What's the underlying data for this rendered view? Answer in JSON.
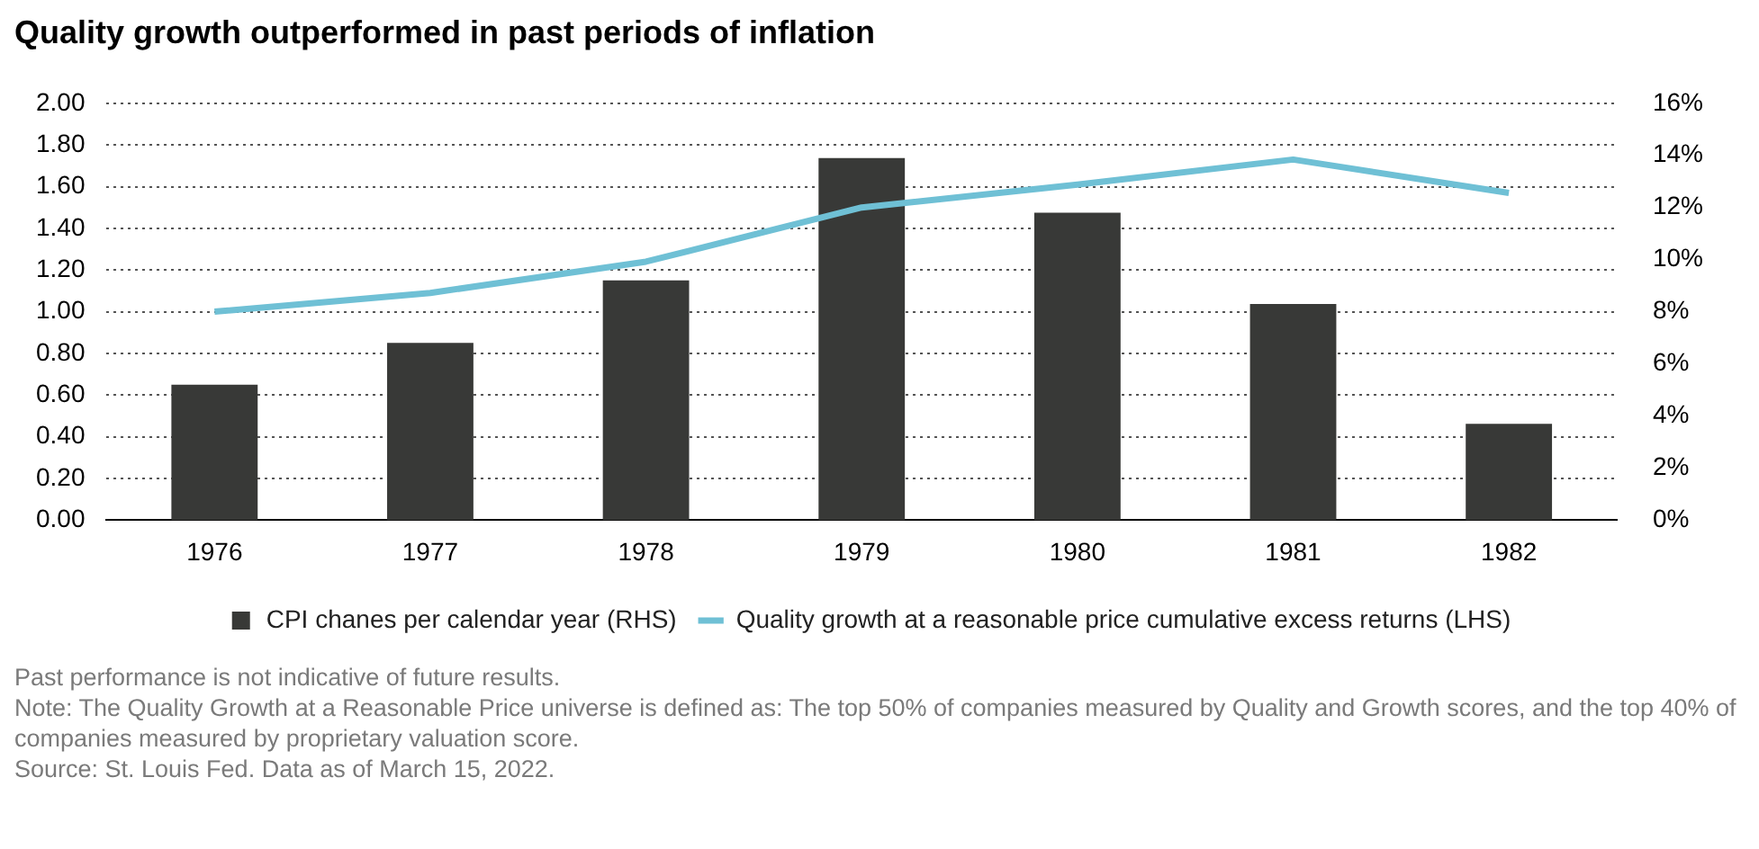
{
  "chart_data": {
    "type": "bar",
    "title": "Quality growth outperformed in past periods of inflation",
    "categories": [
      "1976",
      "1977",
      "1978",
      "1979",
      "1980",
      "1981",
      "1982"
    ],
    "series": [
      {
        "name": "CPI chanes per calendar year (RHS)",
        "axis": "y2",
        "color": "#383937",
        "values": [
          5.2,
          6.8,
          9.2,
          13.9,
          11.8,
          8.3,
          3.7
        ]
      },
      {
        "name": "Quality growth at a reasonable price cumulative excess returns (LHS)",
        "type": "line",
        "color": "#6fc0d5",
        "values": [
          1.0,
          1.09,
          1.24,
          1.5,
          1.61,
          1.73,
          1.57
        ]
      }
    ],
    "ylim": [
      0,
      2
    ],
    "yticks": [
      {
        "value": 0,
        "label": "0.00"
      },
      {
        "value": 0.2,
        "label": "0.20"
      },
      {
        "value": 0.4,
        "label": "0.40"
      },
      {
        "value": 0.6,
        "label": "0.60"
      },
      {
        "value": 0.8,
        "label": "0.80"
      },
      {
        "value": 1,
        "label": "1.00"
      },
      {
        "value": 1.2,
        "label": "1.20"
      },
      {
        "value": 1.4,
        "label": "1.40"
      },
      {
        "value": 1.6,
        "label": "1.60"
      },
      {
        "value": 1.8,
        "label": "1.80"
      },
      {
        "value": 2,
        "label": "2.00"
      }
    ],
    "y2lim": [
      0,
      16
    ],
    "y2ticks": [
      {
        "value": 0,
        "label": "0%"
      },
      {
        "value": 2,
        "label": "2%"
      },
      {
        "value": 4,
        "label": "4%"
      },
      {
        "value": 6,
        "label": "6%"
      },
      {
        "value": 8,
        "label": "8%"
      },
      {
        "value": 10,
        "label": "10%"
      },
      {
        "value": 12,
        "label": "12%"
      },
      {
        "value": 14,
        "label": "14%"
      },
      {
        "value": 16,
        "label": "16%"
      }
    ],
    "grid": "y",
    "legend": "bottom",
    "marker": "none",
    "line_style": "solid",
    "annotations": [
      "Past performance is not indicative of future results.",
      "Note: The Quality Growth at a Reasonable Price universe is defined as: The top 50% of companies measured by Quality and Growth scores, and the top 40% of companies measured by proprietary valuation score.",
      "Source: St. Louis Fed. Data as of March 15, 2022."
    ]
  }
}
